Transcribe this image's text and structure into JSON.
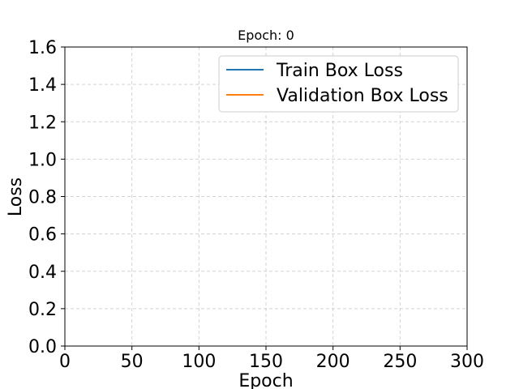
{
  "chart_data": {
    "type": "line",
    "title": "Epoch: 0",
    "xlabel": "Epoch",
    "ylabel": "Loss",
    "xlim": [
      0,
      300
    ],
    "ylim": [
      0.0,
      1.6
    ],
    "x_ticks": [
      0,
      50,
      100,
      150,
      200,
      250,
      300
    ],
    "y_ticks": [
      0.0,
      0.2,
      0.4,
      0.6,
      0.8,
      1.0,
      1.2,
      1.4,
      1.6
    ],
    "x_tick_labels": [
      "0",
      "50",
      "100",
      "150",
      "200",
      "250",
      "300"
    ],
    "y_tick_labels": [
      "0.0",
      "0.2",
      "0.4",
      "0.6",
      "0.8",
      "1.0",
      "1.2",
      "1.4",
      "1.6"
    ],
    "grid": true,
    "legend_position": "top-right",
    "series": [
      {
        "name": "Train Box Loss",
        "color": "#1f77b4",
        "x": [],
        "y": []
      },
      {
        "name": "Validation Box Loss",
        "color": "#ff7f0e",
        "x": [],
        "y": []
      }
    ]
  }
}
